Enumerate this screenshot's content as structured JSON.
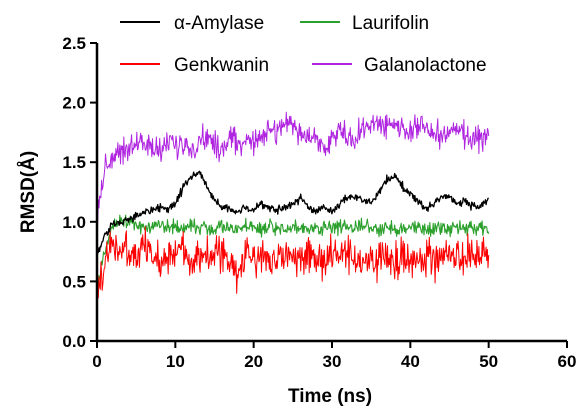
{
  "chart_data": {
    "type": "line",
    "title": "",
    "xlabel": "Time (ns)",
    "ylabel": "RMSD(Å)",
    "xlim": [
      0,
      60
    ],
    "ylim": [
      0.0,
      2.5
    ],
    "x_ticks": [
      "0",
      "10",
      "20",
      "30",
      "40",
      "50",
      "60"
    ],
    "y_ticks": [
      "0.0",
      "0.5",
      "1.0",
      "1.5",
      "2.0",
      "2.5"
    ],
    "grid": false,
    "legend_position": "top",
    "x": [
      0,
      1,
      2,
      3,
      4,
      5,
      6,
      7,
      8,
      9,
      10,
      11,
      12,
      13,
      14,
      15,
      16,
      17,
      18,
      19,
      20,
      21,
      22,
      23,
      24,
      25,
      26,
      27,
      28,
      29,
      30,
      31,
      32,
      33,
      34,
      35,
      36,
      37,
      38,
      39,
      40,
      41,
      42,
      43,
      44,
      45,
      46,
      47,
      48,
      49,
      50
    ],
    "series": [
      {
        "name": "α-Amylase",
        "color": "#000000",
        "values": [
          0.72,
          0.88,
          0.98,
          1.0,
          1.02,
          1.05,
          1.08,
          1.1,
          1.12,
          1.1,
          1.15,
          1.28,
          1.38,
          1.42,
          1.3,
          1.18,
          1.12,
          1.1,
          1.08,
          1.12,
          1.1,
          1.15,
          1.12,
          1.1,
          1.12,
          1.15,
          1.2,
          1.12,
          1.1,
          1.12,
          1.08,
          1.15,
          1.2,
          1.22,
          1.18,
          1.15,
          1.25,
          1.35,
          1.38,
          1.3,
          1.22,
          1.18,
          1.1,
          1.15,
          1.2,
          1.22,
          1.15,
          1.18,
          1.12,
          1.15,
          1.2
        ]
      },
      {
        "name": "Laurifolin",
        "color": "#2ca02c",
        "values": [
          0.42,
          0.78,
          0.95,
          1.02,
          1.0,
          0.98,
          0.95,
          0.96,
          0.98,
          0.95,
          0.96,
          0.94,
          0.98,
          0.95,
          0.96,
          0.94,
          0.96,
          0.95,
          0.94,
          0.96,
          0.95,
          0.94,
          0.96,
          0.95,
          0.94,
          0.96,
          0.95,
          0.94,
          0.96,
          0.95,
          0.94,
          0.96,
          0.95,
          0.94,
          0.96,
          0.95,
          0.94,
          0.96,
          0.95,
          0.94,
          0.96,
          0.95,
          0.94,
          0.96,
          0.95,
          0.94,
          0.96,
          0.95,
          0.94,
          0.96,
          0.9
        ]
      },
      {
        "name": "Genkwanin",
        "color": "#ff0000",
        "values": [
          0.35,
          0.68,
          0.82,
          0.78,
          0.72,
          0.7,
          0.8,
          0.72,
          0.66,
          0.75,
          0.72,
          0.78,
          0.7,
          0.74,
          0.68,
          0.72,
          0.76,
          0.62,
          0.55,
          0.72,
          0.7,
          0.74,
          0.68,
          0.72,
          0.7,
          0.74,
          0.65,
          0.72,
          0.7,
          0.66,
          0.74,
          0.7,
          0.68,
          0.72,
          0.62,
          0.7,
          0.66,
          0.72,
          0.68,
          0.7,
          0.66,
          0.72,
          0.7,
          0.68,
          0.74,
          0.7,
          0.68,
          0.72,
          0.66,
          0.7,
          0.72
        ]
      },
      {
        "name": "Galanolactone",
        "color": "#b026e0",
        "values": [
          1.05,
          1.45,
          1.55,
          1.6,
          1.62,
          1.65,
          1.68,
          1.6,
          1.62,
          1.65,
          1.62,
          1.65,
          1.6,
          1.68,
          1.72,
          1.65,
          1.62,
          1.68,
          1.65,
          1.7,
          1.68,
          1.72,
          1.75,
          1.78,
          1.82,
          1.8,
          1.75,
          1.7,
          1.68,
          1.65,
          1.7,
          1.75,
          1.72,
          1.7,
          1.78,
          1.82,
          1.85,
          1.8,
          1.82,
          1.78,
          1.75,
          1.8,
          1.78,
          1.74,
          1.7,
          1.75,
          1.78,
          1.72,
          1.7,
          1.68,
          1.72
        ]
      }
    ]
  }
}
